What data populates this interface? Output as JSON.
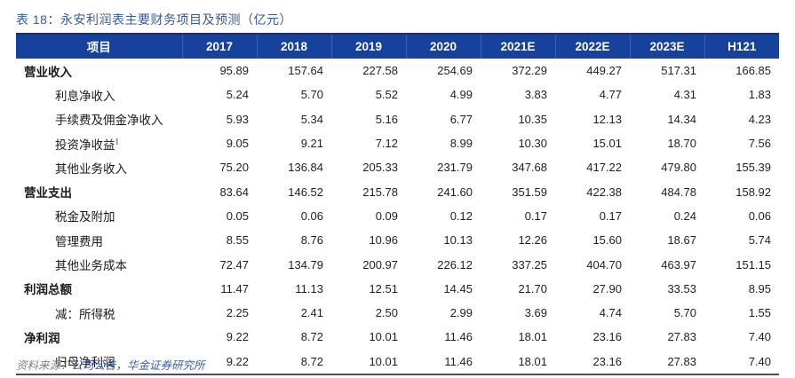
{
  "title": "表 18：永安利润表主要财务项目及预测（亿元）",
  "table": {
    "columns": [
      "项目",
      "2017",
      "2018",
      "2019",
      "2020",
      "2021E",
      "2022E",
      "2023E",
      "H121"
    ],
    "rows": [
      {
        "label": "营业收入",
        "level": 0,
        "bold": true,
        "values": [
          "95.89",
          "157.64",
          "227.58",
          "254.69",
          "372.29",
          "449.27",
          "517.31",
          "166.85"
        ]
      },
      {
        "label": "利息净收入",
        "level": 1,
        "bold": false,
        "values": [
          "5.24",
          "5.70",
          "5.52",
          "4.99",
          "3.83",
          "4.77",
          "4.31",
          "1.83"
        ]
      },
      {
        "label": "手续费及佣金净收入",
        "level": 1,
        "bold": false,
        "values": [
          "5.93",
          "5.34",
          "5.16",
          "6.77",
          "10.35",
          "12.13",
          "14.34",
          "4.23"
        ]
      },
      {
        "label": "投资净收益",
        "sup": "1",
        "level": 1,
        "bold": false,
        "values": [
          "9.05",
          "9.21",
          "7.12",
          "8.99",
          "10.30",
          "15.01",
          "18.70",
          "7.56"
        ]
      },
      {
        "label": "其他业务收入",
        "level": 1,
        "bold": false,
        "values": [
          "75.20",
          "136.84",
          "205.33",
          "231.79",
          "347.68",
          "417.22",
          "479.80",
          "155.39"
        ]
      },
      {
        "label": "营业支出",
        "level": 0,
        "bold": true,
        "values": [
          "83.64",
          "146.52",
          "215.78",
          "241.60",
          "351.59",
          "422.38",
          "484.78",
          "158.92"
        ]
      },
      {
        "label": "税金及附加",
        "level": 1,
        "bold": false,
        "values": [
          "0.05",
          "0.06",
          "0.09",
          "0.12",
          "0.17",
          "0.17",
          "0.24",
          "0.06"
        ]
      },
      {
        "label": "管理费用",
        "level": 1,
        "bold": false,
        "values": [
          "8.55",
          "8.76",
          "10.96",
          "10.13",
          "12.26",
          "15.60",
          "18.67",
          "5.74"
        ]
      },
      {
        "label": "其他业务成本",
        "level": 1,
        "bold": false,
        "values": [
          "72.47",
          "134.79",
          "200.97",
          "226.12",
          "337.25",
          "404.70",
          "463.97",
          "151.15"
        ]
      },
      {
        "label": "利润总额",
        "level": 0,
        "bold": true,
        "values": [
          "11.47",
          "11.13",
          "12.51",
          "14.45",
          "21.70",
          "27.90",
          "33.53",
          "8.95"
        ]
      },
      {
        "label": "减：所得税",
        "level": 1,
        "bold": false,
        "values": [
          "2.25",
          "2.41",
          "2.50",
          "2.99",
          "3.69",
          "4.74",
          "5.70",
          "1.55"
        ]
      },
      {
        "label": "净利润",
        "level": 0,
        "bold": true,
        "values": [
          "9.22",
          "8.72",
          "10.01",
          "11.46",
          "18.01",
          "23.16",
          "27.83",
          "7.40"
        ]
      },
      {
        "label": "归母净利润",
        "level": 1,
        "bold": false,
        "values": [
          "9.22",
          "8.72",
          "10.01",
          "11.46",
          "18.01",
          "23.16",
          "27.83",
          "7.40"
        ]
      }
    ]
  },
  "footer": {
    "source_label": "资料来源：",
    "source_text": "公司公告，华金证券研究所"
  },
  "colors": {
    "header_bg": "#16419c",
    "header_text": "#ffffff",
    "title_blue": "#35599e",
    "source_label_color": "#8f7b7b",
    "source_text_blue": "#3b5ea8",
    "bottom_rule": "#4a4f63"
  }
}
